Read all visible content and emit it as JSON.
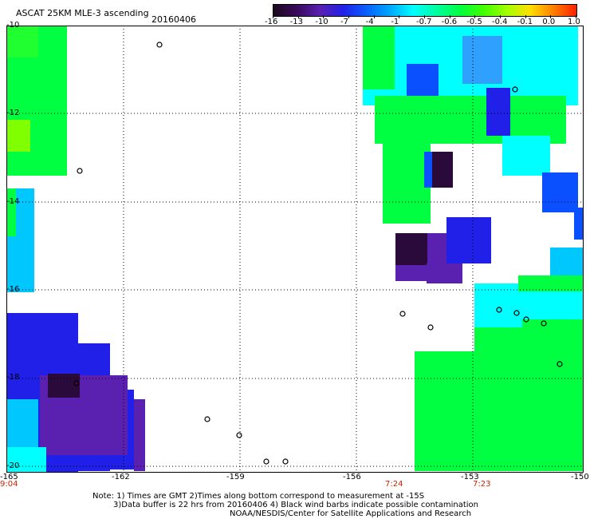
{
  "header": {
    "title": "ASCAT 25KM MLE-3 ascending",
    "date": "20160406"
  },
  "colorbar": {
    "labels": [
      "-16",
      "-13",
      "-10",
      "-7",
      "-4",
      "-1",
      "-0.7",
      "-0.6",
      "-0.5",
      "-0.4",
      "-0.1",
      "0.0",
      "1.0"
    ],
    "stops": [
      "#1a0a1e",
      "#3a0a5a",
      "#5a20b0",
      "#2020e8",
      "#0a60ff",
      "#00a8ff",
      "#00ffff",
      "#00ffa0",
      "#00ff40",
      "#40ff00",
      "#a0ff00",
      "#ffe000",
      "#ff8000",
      "#ff2000"
    ]
  },
  "axes": {
    "y_labels": [
      "-10",
      "-12",
      "-14",
      "-16",
      "-18",
      "-20"
    ],
    "x_labels": [
      "-165",
      "-162",
      "-159",
      "-156",
      "-153",
      "-150"
    ]
  },
  "times": [
    "9:04",
    "7:24",
    "7:23"
  ],
  "notes": {
    "line1": "Note: 1) Times are GMT 2)Times along bottom correspond to measurement at -15S",
    "line2": "3)Data buffer is 22 hrs from 20160406 4) Black wind barbs indicate possible contamination",
    "line3": "NOAA/NESDIS/Center for Satellite Applications and Research"
  },
  "colors": {
    "green": "#00ff40",
    "cyan": "#00ffff",
    "light_blue": "#00c8ff",
    "blue": "#0a50ff",
    "deep_blue": "#2020e8",
    "purple": "#5a20b0",
    "dark": "#2a0a3a",
    "time_red": "#cc2200"
  }
}
